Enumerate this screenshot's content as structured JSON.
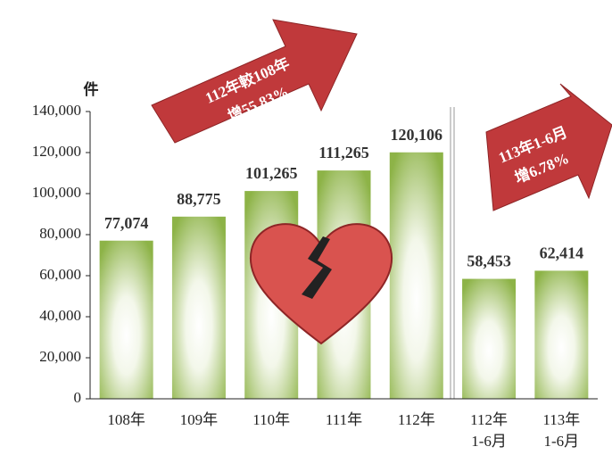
{
  "chart_data": {
    "type": "bar",
    "ylabel": "件",
    "categories": [
      "108年",
      "109年",
      "110年",
      "111年",
      "112年",
      "112年\n1-6月",
      "113年\n1-6月"
    ],
    "values": [
      77074,
      88775,
      101265,
      111265,
      120106,
      58453,
      62414
    ],
    "value_labels": [
      "77,074",
      "88,775",
      "101,265",
      "111,265",
      "120,106",
      "58,453",
      "62,414"
    ],
    "color": "#8db347",
    "ylim": [
      0,
      140000
    ],
    "yticks": [
      0,
      {
        "value": 20000,
        "label": "20,000"
      },
      {
        "value": 40000,
        "label": "40,000"
      },
      {
        "value": 60000,
        "label": "60,000"
      },
      {
        "value": 80000,
        "label": "80,000"
      },
      {
        "value": 100000,
        "label": "100,000"
      },
      {
        "value": 120000,
        "label": "120,000"
      },
      {
        "value": 140000,
        "label": "140,000"
      }
    ],
    "annotations": [
      "112年較108年",
      "增55.83%",
      "113年1-6月",
      "增6.78%"
    ]
  }
}
